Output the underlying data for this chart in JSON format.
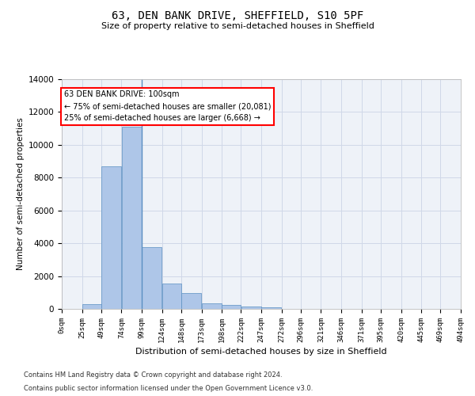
{
  "title": "63, DEN BANK DRIVE, SHEFFIELD, S10 5PF",
  "subtitle": "Size of property relative to semi-detached houses in Sheffield",
  "xlabel": "Distribution of semi-detached houses by size in Sheffield",
  "ylabel": "Number of semi-detached properties",
  "bar_values": [
    0,
    300,
    8700,
    11100,
    3750,
    1550,
    950,
    350,
    225,
    150,
    100,
    0,
    0,
    0,
    0,
    0,
    0,
    0,
    0,
    0
  ],
  "bin_edges": [
    0,
    25,
    49,
    74,
    99,
    124,
    148,
    173,
    198,
    222,
    247,
    272,
    296,
    321,
    346,
    371,
    395,
    420,
    445,
    469,
    494
  ],
  "tick_labels": [
    "0sqm",
    "25sqm",
    "49sqm",
    "74sqm",
    "99sqm",
    "124sqm",
    "148sqm",
    "173sqm",
    "198sqm",
    "222sqm",
    "247sqm",
    "272sqm",
    "296sqm",
    "321sqm",
    "346sqm",
    "371sqm",
    "395sqm",
    "420sqm",
    "445sqm",
    "469sqm",
    "494sqm"
  ],
  "bar_color": "#aec6e8",
  "bar_edge_color": "#5a8fc2",
  "grid_color": "#d0d8e8",
  "bg_color": "#eef2f8",
  "annotation_text_line1": "63 DEN BANK DRIVE: 100sqm",
  "annotation_text_line2": "← 75% of semi-detached houses are smaller (20,081)",
  "annotation_text_line3": "25% of semi-detached houses are larger (6,668) →",
  "vline_x": 99,
  "ylim": [
    0,
    14000
  ],
  "yticks": [
    0,
    2000,
    4000,
    6000,
    8000,
    10000,
    12000,
    14000
  ],
  "footnote1": "Contains HM Land Registry data © Crown copyright and database right 2024.",
  "footnote2": "Contains public sector information licensed under the Open Government Licence v3.0."
}
